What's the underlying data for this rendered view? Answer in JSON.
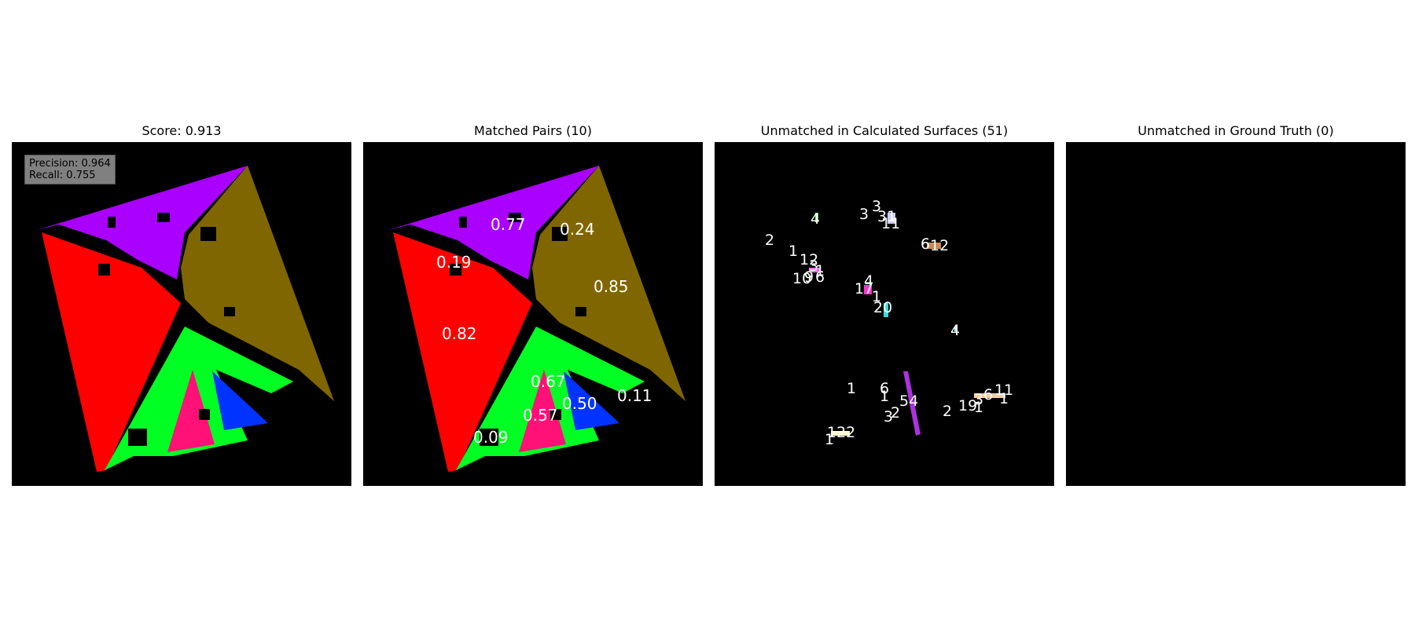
{
  "panels": [
    {
      "title": "Score: 0.913",
      "precision": "Precision: 0.964",
      "recall": "Recall: 0.755"
    },
    {
      "title": "Matched Pairs (10)"
    },
    {
      "title": "Unmatched in Calculated Surfaces (51)"
    },
    {
      "title": "Unmatched in Ground Truth (0)"
    }
  ],
  "matched_labels": [
    "0.77",
    "0.24",
    "0.19",
    "0.85",
    "0.82",
    "0.67",
    "0.50",
    "0.11",
    "0.57",
    "0.09"
  ],
  "unmatched_labels": [
    "3",
    "3",
    "31",
    "11",
    "4",
    "2",
    "6",
    "12",
    "1",
    "12",
    "3",
    "1",
    "10",
    "9",
    "6",
    "4",
    "17",
    "1",
    "20",
    "4",
    "1",
    "6",
    "1",
    "54",
    "3",
    "2",
    "2",
    "19",
    "1",
    "3",
    "6",
    "11",
    "1",
    "122",
    "1"
  ],
  "colors": {
    "purple": "#aa00ff",
    "olive": "#806600",
    "red": "#ff0000",
    "green": "#00ff22",
    "pink": "#ff1177",
    "blue": "#0033ff",
    "background": "#000000"
  }
}
